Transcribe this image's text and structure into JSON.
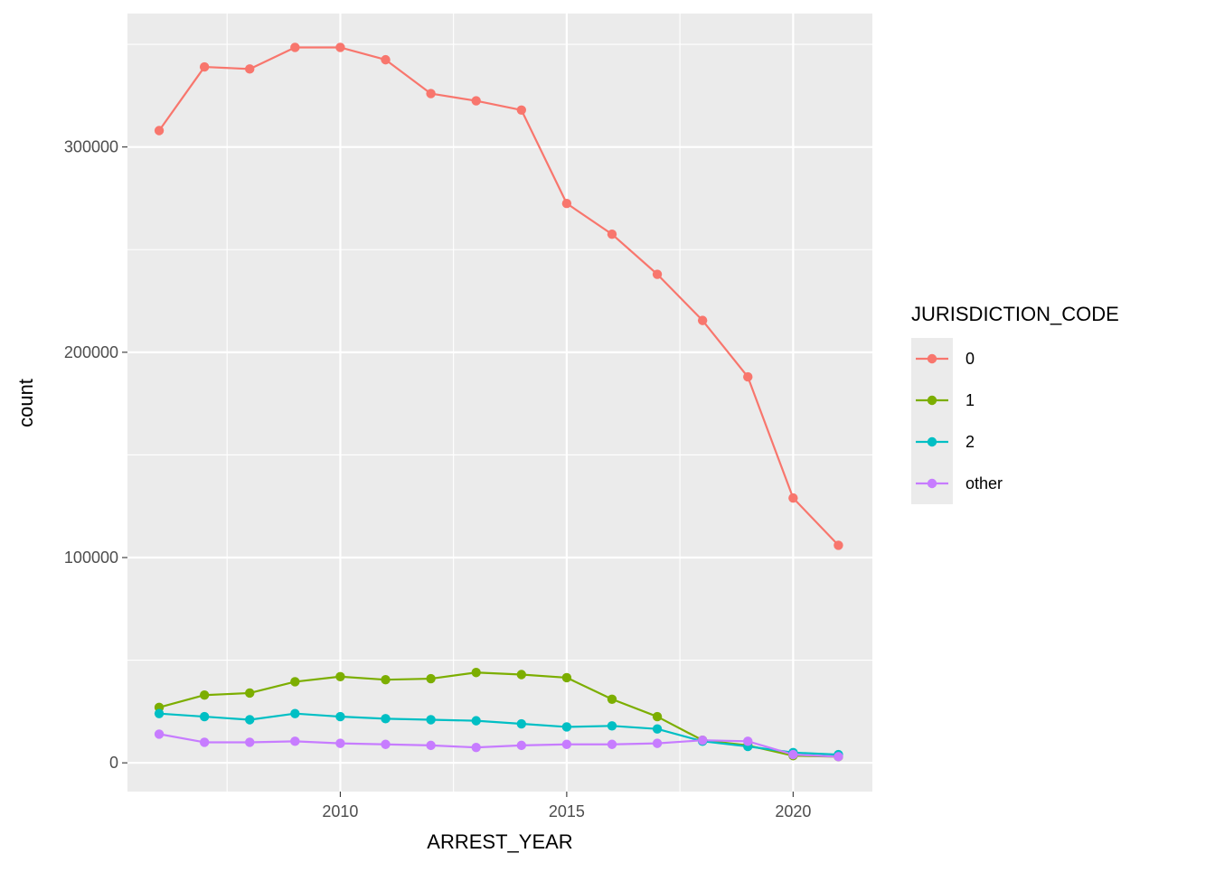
{
  "chart_data": {
    "type": "line",
    "xlabel": "ARREST_YEAR",
    "ylabel": "count",
    "xlim": [
      2005.3,
      2021.75
    ],
    "ylim": [
      -14000,
      365000
    ],
    "x_ticks": [
      2010,
      2015,
      2020
    ],
    "x_tick_labels": [
      "2010",
      "2015",
      "2020"
    ],
    "y_ticks": [
      0,
      100000,
      200000,
      300000
    ],
    "y_tick_labels": [
      "0",
      "100000",
      "200000",
      "300000"
    ],
    "grid": true,
    "legend": {
      "title": "JURISDICTION_CODE",
      "position": "right"
    },
    "x": [
      2006,
      2007,
      2008,
      2009,
      2010,
      2011,
      2012,
      2013,
      2014,
      2015,
      2016,
      2017,
      2018,
      2019,
      2020,
      2021
    ],
    "series": [
      {
        "name": "0",
        "color": "#F8766D",
        "values": [
          308000,
          339000,
          338000,
          348500,
          348500,
          342500,
          326000,
          322500,
          318000,
          272500,
          257500,
          238000,
          215500,
          188000,
          129000,
          106000
        ]
      },
      {
        "name": "1",
        "color": "#7CAE00",
        "values": [
          27000,
          33000,
          34000,
          39500,
          42000,
          40500,
          41000,
          44000,
          43000,
          41500,
          31000,
          22500,
          11000,
          8500,
          3500,
          3000
        ]
      },
      {
        "name": "2",
        "color": "#00BFC4",
        "values": [
          24000,
          22500,
          21000,
          24000,
          22500,
          21500,
          21000,
          20500,
          19000,
          17500,
          18000,
          16500,
          10500,
          8000,
          5000,
          4000
        ]
      },
      {
        "name": "other",
        "color": "#C77CFF",
        "values": [
          14000,
          10000,
          10000,
          10500,
          9500,
          9000,
          8500,
          7500,
          8500,
          9000,
          9000,
          9500,
          11000,
          10500,
          4000,
          3000
        ]
      }
    ]
  }
}
